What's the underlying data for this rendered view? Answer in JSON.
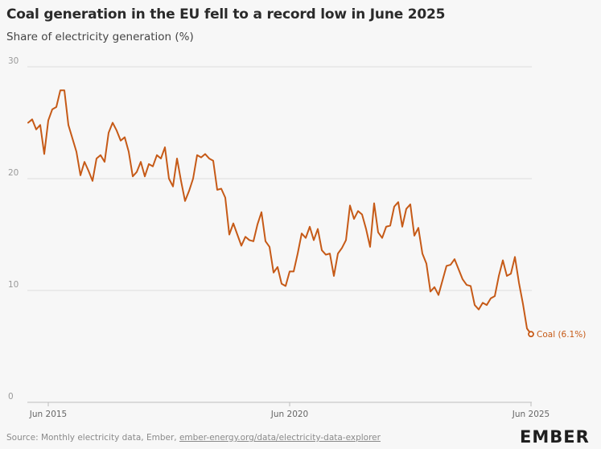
{
  "title": "Coal generation in the EU fell to a record low in June 2025",
  "subtitle": "Share of electricity generation (%)",
  "source": {
    "prefix": "Source: Monthly electricity data, Ember, ",
    "link_text": "ember-energy.org/data/electricity-data-explorer"
  },
  "logo": "EMBER",
  "colors": {
    "line": "#c65a17",
    "grid": "#dcdcdc",
    "axis_text": "#9a9a9a"
  },
  "chart_data": {
    "type": "line",
    "title": "Coal generation in the EU fell to a record low in June 2025",
    "ylabel": "Share of electricity generation (%)",
    "xlabel": "",
    "ylim": [
      0,
      30
    ],
    "yticks": [
      "0",
      "10",
      "20",
      "30"
    ],
    "x_start": "2015-01",
    "x_end": "2025-06",
    "xticks": [
      {
        "label": "Jun 2015",
        "index": 5
      },
      {
        "label": "Jun 2020",
        "index": 65
      },
      {
        "label": "Jun 2025",
        "index": 125
      }
    ],
    "series": [
      {
        "name": "Coal",
        "end_label": "Coal (6.1%)",
        "values": [
          25.0,
          25.3,
          24.4,
          24.8,
          22.2,
          25.2,
          26.2,
          26.4,
          27.9,
          27.9,
          24.8,
          23.6,
          22.4,
          20.3,
          21.5,
          20.7,
          19.8,
          21.8,
          22.1,
          21.5,
          24.1,
          25.0,
          24.3,
          23.4,
          23.7,
          22.4,
          20.2,
          20.6,
          21.5,
          20.2,
          21.3,
          21.1,
          22.1,
          21.8,
          22.8,
          20.0,
          19.3,
          21.8,
          19.8,
          18.0,
          18.9,
          20.0,
          22.1,
          21.9,
          22.2,
          21.8,
          21.6,
          19.0,
          19.1,
          18.3,
          15.0,
          16.0,
          15.0,
          14.0,
          14.8,
          14.5,
          14.4,
          15.9,
          17.0,
          14.4,
          13.9,
          11.6,
          12.1,
          10.6,
          10.4,
          11.7,
          11.7,
          13.3,
          15.1,
          14.7,
          15.7,
          14.5,
          15.5,
          13.6,
          13.2,
          13.3,
          11.3,
          13.3,
          13.8,
          14.5,
          17.6,
          16.4,
          17.1,
          16.8,
          15.5,
          13.9,
          17.8,
          15.2,
          14.7,
          15.7,
          15.8,
          17.5,
          17.9,
          15.7,
          17.3,
          17.7,
          14.9,
          15.6,
          13.3,
          12.4,
          9.9,
          10.3,
          9.6,
          10.9,
          12.2,
          12.3,
          12.8,
          11.9,
          11.0,
          10.5,
          10.4,
          8.7,
          8.3,
          8.9,
          8.7,
          9.3,
          9.5,
          11.3,
          12.7,
          11.3,
          11.5,
          13.0,
          10.7,
          8.8,
          6.6,
          6.1
        ]
      }
    ]
  }
}
